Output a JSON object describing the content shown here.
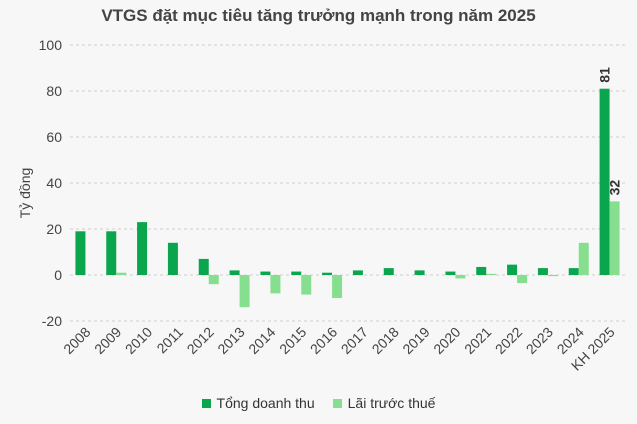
{
  "chart_data": {
    "type": "bar",
    "title": "VTGS đặt mục tiêu tăng trưởng mạnh trong năm 2025",
    "ylabel": "Tỷ đồng",
    "xlabel": "",
    "ylim": [
      -20,
      100
    ],
    "yticks": [
      "100",
      "80",
      "60",
      "40",
      "20",
      "0",
      "-20"
    ],
    "grid": true,
    "legend_position": "bottom",
    "categories": [
      "2008",
      "2009",
      "2010",
      "2011",
      "2012",
      "2013",
      "2014",
      "2015",
      "2016",
      "2017",
      "2018",
      "2019",
      "2020",
      "2021",
      "2022",
      "2023",
      "2024",
      "KH 2025"
    ],
    "series": [
      {
        "name": "Tổng doanh thu",
        "color": "#0aa64e",
        "values": [
          19,
          19,
          23,
          14,
          7,
          2,
          1.5,
          1.5,
          1,
          2,
          3,
          2,
          1.5,
          3.5,
          4.5,
          3,
          3,
          81
        ]
      },
      {
        "name": "Lãi trước thuế",
        "color": "#86df8f",
        "values": [
          0,
          1,
          0,
          0,
          -4,
          -14,
          -8,
          -8.5,
          -10,
          0,
          0,
          0,
          -1.5,
          0.5,
          -3.5,
          -0.5,
          14,
          32
        ]
      }
    ],
    "data_labels": [
      {
        "category": "KH 2025",
        "series": "Tổng doanh thu",
        "text": "81"
      },
      {
        "category": "KH 2025",
        "series": "Lãi trước thuế",
        "text": "32"
      }
    ]
  }
}
